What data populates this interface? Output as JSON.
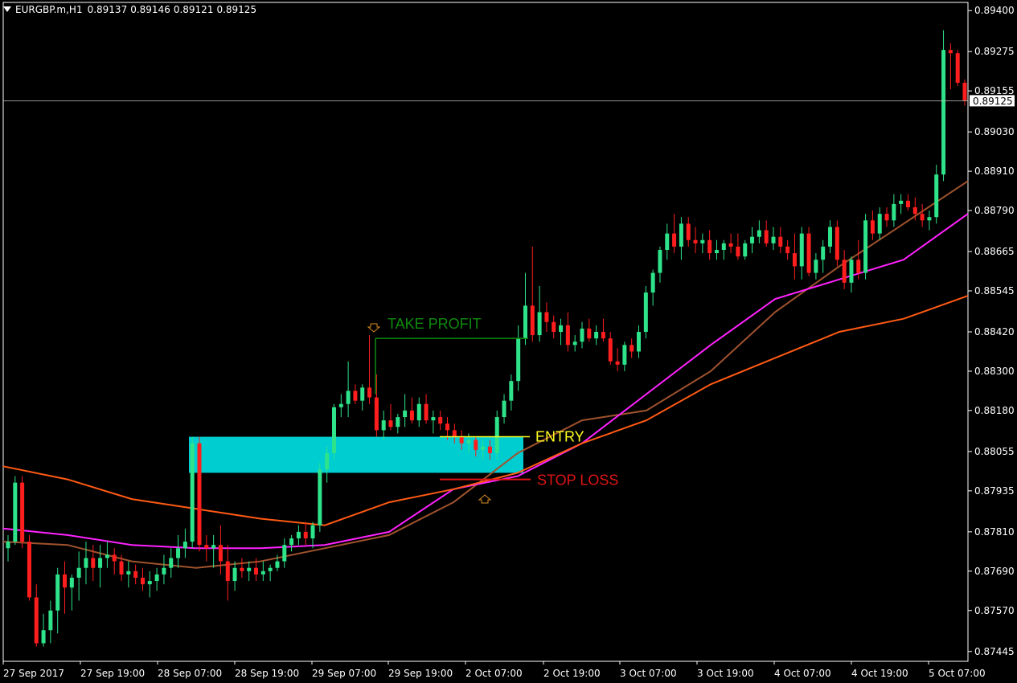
{
  "header": {
    "symbol": "EURGBP.m,H1",
    "open": "0.89137",
    "high": "0.89146",
    "low": "0.89121",
    "close": "0.89125"
  },
  "colors": {
    "background": "#000000",
    "bull": "#2ee38a",
    "bear": "#ff1e1e",
    "ma_fast": "#a0522d",
    "ma_mid": "#ff22ff",
    "ma_slow": "#ff5a14",
    "zone": "#00cdd0",
    "take_profit": "#0f8a0f",
    "entry": "#ffff22",
    "stop_loss": "#e01414",
    "arrow": "#d98b1e",
    "axis": "#ffffff",
    "grid_text": "#ffffff"
  },
  "chart_data": {
    "type": "candlestick",
    "symbol": "EURGBP.m,H1",
    "x_ticks": [
      "27 Sep 2017",
      "27 Sep 19:00",
      "28 Sep 07:00",
      "28 Sep 19:00",
      "29 Sep 07:00",
      "29 Sep 19:00",
      "2 Oct 07:00",
      "2 Oct 19:00",
      "3 Oct 07:00",
      "3 Oct 19:00",
      "4 Oct 07:00",
      "4 Oct 19:00",
      "5 Oct 07:00"
    ],
    "y_ticks": [
      "0.89400",
      "0.89275",
      "0.89155",
      "0.89030",
      "0.88910",
      "0.88790",
      "0.88665",
      "0.88545",
      "0.88420",
      "0.88300",
      "0.88180",
      "0.88055",
      "0.87935",
      "0.87810",
      "0.87690",
      "0.87570",
      "0.87445"
    ],
    "ylim": [
      0.87415,
      0.89425
    ],
    "current_price": "0.89125",
    "candles_ohlc": [
      [
        0.8776,
        0.878,
        0.8772,
        0.8778
      ],
      [
        0.8778,
        0.8798,
        0.8777,
        0.8796
      ],
      [
        0.8796,
        0.8798,
        0.8776,
        0.8778
      ],
      [
        0.8778,
        0.878,
        0.876,
        0.8761
      ],
      [
        0.8761,
        0.8765,
        0.8746,
        0.8747
      ],
      [
        0.8747,
        0.8756,
        0.8746,
        0.8751
      ],
      [
        0.8751,
        0.876,
        0.8747,
        0.8757
      ],
      [
        0.8757,
        0.877,
        0.875,
        0.8768
      ],
      [
        0.8768,
        0.8772,
        0.8756,
        0.8764
      ],
      [
        0.8764,
        0.8768,
        0.8757,
        0.8767
      ],
      [
        0.8767,
        0.8775,
        0.876,
        0.877
      ],
      [
        0.877,
        0.8778,
        0.8765,
        0.8773
      ],
      [
        0.8773,
        0.8777,
        0.8766,
        0.877
      ],
      [
        0.877,
        0.8777,
        0.8764,
        0.8773
      ],
      [
        0.8773,
        0.8778,
        0.877,
        0.8774
      ],
      [
        0.8774,
        0.8776,
        0.8768,
        0.8772
      ],
      [
        0.8772,
        0.8774,
        0.8766,
        0.8768
      ],
      [
        0.8768,
        0.8772,
        0.8764,
        0.8769
      ],
      [
        0.8769,
        0.8771,
        0.8765,
        0.8767
      ],
      [
        0.8767,
        0.877,
        0.8763,
        0.8765
      ],
      [
        0.8765,
        0.8769,
        0.8761,
        0.8766
      ],
      [
        0.8766,
        0.877,
        0.8763,
        0.8768
      ],
      [
        0.8768,
        0.8774,
        0.8765,
        0.877
      ],
      [
        0.877,
        0.8776,
        0.8767,
        0.8773
      ],
      [
        0.8773,
        0.878,
        0.877,
        0.8776
      ],
      [
        0.8776,
        0.8782,
        0.8773,
        0.8778
      ],
      [
        0.8778,
        0.881,
        0.8776,
        0.8808
      ],
      [
        0.8808,
        0.881,
        0.8775,
        0.8777
      ],
      [
        0.8777,
        0.878,
        0.8772,
        0.8776
      ],
      [
        0.8776,
        0.878,
        0.877,
        0.8777
      ],
      [
        0.8777,
        0.8783,
        0.8768,
        0.8772
      ],
      [
        0.8772,
        0.8777,
        0.876,
        0.8766
      ],
      [
        0.8766,
        0.8772,
        0.8763,
        0.877
      ],
      [
        0.877,
        0.8773,
        0.8767,
        0.8769
      ],
      [
        0.8769,
        0.8772,
        0.8766,
        0.877
      ],
      [
        0.877,
        0.8773,
        0.8766,
        0.8768
      ],
      [
        0.8768,
        0.8772,
        0.8766,
        0.8769
      ],
      [
        0.8769,
        0.8771,
        0.8766,
        0.877
      ],
      [
        0.877,
        0.8774,
        0.8769,
        0.8772
      ],
      [
        0.8772,
        0.8779,
        0.877,
        0.8777
      ],
      [
        0.8777,
        0.878,
        0.8775,
        0.8779
      ],
      [
        0.8779,
        0.8783,
        0.8777,
        0.8781
      ],
      [
        0.8781,
        0.8784,
        0.8777,
        0.8779
      ],
      [
        0.8779,
        0.8784,
        0.8776,
        0.8783
      ],
      [
        0.8783,
        0.8802,
        0.8781,
        0.88
      ],
      [
        0.88,
        0.8807,
        0.8796,
        0.8805
      ],
      [
        0.8805,
        0.882,
        0.8803,
        0.8819
      ],
      [
        0.8819,
        0.8823,
        0.8816,
        0.882
      ],
      [
        0.882,
        0.8833,
        0.8816,
        0.8824
      ],
      [
        0.8824,
        0.8826,
        0.882,
        0.8821
      ],
      [
        0.8821,
        0.8826,
        0.8818,
        0.8825
      ],
      [
        0.8825,
        0.8841,
        0.882,
        0.8822
      ],
      [
        0.8822,
        0.8829,
        0.881,
        0.8812
      ],
      [
        0.8812,
        0.8818,
        0.8809,
        0.8815
      ],
      [
        0.8815,
        0.882,
        0.8812,
        0.8813
      ],
      [
        0.8813,
        0.8817,
        0.8811,
        0.8816
      ],
      [
        0.8816,
        0.8823,
        0.8813,
        0.8818
      ],
      [
        0.8818,
        0.8822,
        0.8814,
        0.8815
      ],
      [
        0.8815,
        0.8822,
        0.8813,
        0.882
      ],
      [
        0.882,
        0.8823,
        0.8814,
        0.8815
      ],
      [
        0.8815,
        0.8818,
        0.8811,
        0.8816
      ],
      [
        0.8816,
        0.8818,
        0.8812,
        0.8814
      ],
      [
        0.8814,
        0.8816,
        0.8809,
        0.8812
      ],
      [
        0.8812,
        0.8814,
        0.8808,
        0.881
      ],
      [
        0.881,
        0.8812,
        0.8806,
        0.8808
      ],
      [
        0.8808,
        0.8811,
        0.8805,
        0.8809
      ],
      [
        0.8809,
        0.881,
        0.8804,
        0.8806
      ],
      [
        0.8806,
        0.8809,
        0.8803,
        0.8807
      ],
      [
        0.8807,
        0.8809,
        0.8803,
        0.8805
      ],
      [
        0.8805,
        0.8818,
        0.8803,
        0.8816
      ],
      [
        0.8816,
        0.8823,
        0.8814,
        0.8821
      ],
      [
        0.8821,
        0.8829,
        0.8818,
        0.8827
      ],
      [
        0.8827,
        0.8844,
        0.8824,
        0.884
      ],
      [
        0.884,
        0.886,
        0.8838,
        0.885
      ],
      [
        0.885,
        0.8868,
        0.8839,
        0.8841
      ],
      [
        0.8841,
        0.8856,
        0.8839,
        0.8848
      ],
      [
        0.8848,
        0.8851,
        0.8842,
        0.8845
      ],
      [
        0.8845,
        0.8847,
        0.884,
        0.8842
      ],
      [
        0.8842,
        0.8846,
        0.8838,
        0.8844
      ],
      [
        0.8844,
        0.8848,
        0.8836,
        0.8838
      ],
      [
        0.8838,
        0.8841,
        0.8836,
        0.8839
      ],
      [
        0.8839,
        0.8845,
        0.8837,
        0.8843
      ],
      [
        0.8843,
        0.8846,
        0.8839,
        0.884
      ],
      [
        0.884,
        0.8844,
        0.8838,
        0.8842
      ],
      [
        0.8842,
        0.8846,
        0.8839,
        0.884
      ],
      [
        0.884,
        0.8842,
        0.8832,
        0.8833
      ],
      [
        0.8833,
        0.8837,
        0.883,
        0.8832
      ],
      [
        0.8832,
        0.8839,
        0.883,
        0.8838
      ],
      [
        0.8838,
        0.884,
        0.8834,
        0.8836
      ],
      [
        0.8836,
        0.8844,
        0.8834,
        0.8842
      ],
      [
        0.8842,
        0.8856,
        0.884,
        0.8854
      ],
      [
        0.8854,
        0.8861,
        0.885,
        0.886
      ],
      [
        0.886,
        0.8868,
        0.8857,
        0.8867
      ],
      [
        0.8867,
        0.8875,
        0.8864,
        0.8872
      ],
      [
        0.8872,
        0.8878,
        0.8866,
        0.8868
      ],
      [
        0.8868,
        0.8877,
        0.8864,
        0.8875
      ],
      [
        0.8875,
        0.8877,
        0.8868,
        0.887
      ],
      [
        0.887,
        0.8874,
        0.8866,
        0.8869
      ],
      [
        0.8869,
        0.8872,
        0.8866,
        0.887
      ],
      [
        0.887,
        0.8873,
        0.8864,
        0.8866
      ],
      [
        0.8866,
        0.887,
        0.8864,
        0.8867
      ],
      [
        0.8867,
        0.887,
        0.8864,
        0.8869
      ],
      [
        0.8869,
        0.8872,
        0.8866,
        0.8868
      ],
      [
        0.8868,
        0.8872,
        0.8864,
        0.8865
      ],
      [
        0.8865,
        0.887,
        0.8864,
        0.8869
      ],
      [
        0.8869,
        0.8874,
        0.8866,
        0.8871
      ],
      [
        0.8871,
        0.8876,
        0.8869,
        0.8873
      ],
      [
        0.8873,
        0.8876,
        0.8868,
        0.8869
      ],
      [
        0.8869,
        0.8874,
        0.8867,
        0.8871
      ],
      [
        0.8871,
        0.8874,
        0.8866,
        0.8868
      ],
      [
        0.8868,
        0.887,
        0.8864,
        0.8866
      ],
      [
        0.8866,
        0.8872,
        0.8858,
        0.8862
      ],
      [
        0.8862,
        0.8874,
        0.8858,
        0.8872
      ],
      [
        0.8872,
        0.8874,
        0.8859,
        0.886
      ],
      [
        0.886,
        0.8866,
        0.8858,
        0.8864
      ],
      [
        0.8864,
        0.887,
        0.886,
        0.8868
      ],
      [
        0.8868,
        0.8876,
        0.8866,
        0.8874
      ],
      [
        0.8874,
        0.8876,
        0.8862,
        0.8864
      ],
      [
        0.8864,
        0.8867,
        0.8855,
        0.8857
      ],
      [
        0.8857,
        0.8865,
        0.8854,
        0.8864
      ],
      [
        0.8864,
        0.887,
        0.8858,
        0.886
      ],
      [
        0.886,
        0.8878,
        0.8858,
        0.8876
      ],
      [
        0.8876,
        0.8879,
        0.887,
        0.8872
      ],
      [
        0.8872,
        0.888,
        0.887,
        0.8878
      ],
      [
        0.8878,
        0.888,
        0.8874,
        0.8876
      ],
      [
        0.8876,
        0.8884,
        0.8874,
        0.8881
      ],
      [
        0.8881,
        0.8884,
        0.8878,
        0.8882
      ],
      [
        0.8882,
        0.8884,
        0.8879,
        0.888
      ],
      [
        0.888,
        0.8883,
        0.8876,
        0.8878
      ],
      [
        0.8878,
        0.8881,
        0.8874,
        0.8876
      ],
      [
        0.8876,
        0.8879,
        0.8873,
        0.8877
      ],
      [
        0.8877,
        0.8893,
        0.8875,
        0.889
      ],
      [
        0.889,
        0.8934,
        0.8888,
        0.8928
      ],
      [
        0.8928,
        0.893,
        0.8916,
        0.8927
      ],
      [
        0.8927,
        0.8928,
        0.8917,
        0.8918
      ],
      [
        0.8918,
        0.8919,
        0.8911,
        0.89125
      ]
    ],
    "moving_averages": [
      {
        "color_key": "ma_fast",
        "values": [
          0.8778,
          0.8777,
          0.8772,
          0.877,
          0.8772,
          0.8776,
          0.878,
          0.879,
          0.8805,
          0.8815,
          0.8818,
          0.883,
          0.8848,
          0.8862,
          0.8875,
          0.8888
        ]
      },
      {
        "color_key": "ma_mid",
        "values": [
          0.8782,
          0.878,
          0.8777,
          0.8776,
          0.8776,
          0.8777,
          0.8781,
          0.8794,
          0.8798,
          0.8808,
          0.8823,
          0.8838,
          0.8852,
          0.8858,
          0.8864,
          0.8878
        ]
      },
      {
        "color_key": "ma_slow",
        "values": [
          0.8801,
          0.8797,
          0.8791,
          0.8788,
          0.8785,
          0.8783,
          0.879,
          0.8794,
          0.8799,
          0.8808,
          0.8815,
          0.8826,
          0.8834,
          0.8842,
          0.8846,
          0.8853
        ]
      }
    ],
    "annotations": {
      "take_profit": {
        "label": "TAKE PROFIT",
        "price": 0.884
      },
      "entry": {
        "label": "ENTRY",
        "price": 0.881
      },
      "stop_loss": {
        "label": "STOP LOSS",
        "price": 0.8797
      },
      "zone": {
        "top": 0.881,
        "bottom": 0.8799
      }
    }
  }
}
